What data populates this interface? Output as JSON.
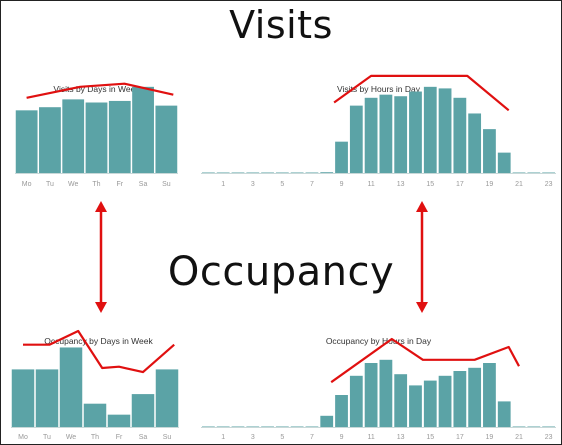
{
  "headings": {
    "visits": "Visits",
    "occupancy": "Occupancy"
  },
  "colors": {
    "bar": "#5ba3a6",
    "trend": "#e01010",
    "arrow": "#e01010",
    "axis": "#c8d8d8"
  },
  "chart_data": [
    {
      "type": "bar",
      "title": "Visits by Days in Week",
      "categories": [
        "Mo",
        "Tu",
        "We",
        "Th",
        "Fr",
        "Sa",
        "Su"
      ],
      "values": [
        40,
        42,
        47,
        45,
        46,
        55,
        43
      ],
      "ylim": [
        0,
        60
      ],
      "trend": [
        [
          0.0,
          48
        ],
        [
          2.3,
          55
        ],
        [
          4.2,
          57
        ],
        [
          6.3,
          50
        ]
      ]
    },
    {
      "type": "bar",
      "title": "Visits by Hours in Day",
      "categories": [
        "0",
        "1",
        "2",
        "3",
        "4",
        "5",
        "6",
        "7",
        "8",
        "9",
        "10",
        "11",
        "12",
        "13",
        "14",
        "15",
        "16",
        "17",
        "18",
        "19",
        "20",
        "21",
        "22",
        "23"
      ],
      "tick_labels": [
        "1",
        "3",
        "5",
        "7",
        "9",
        "11",
        "13",
        "15",
        "17",
        "19",
        "21",
        "23"
      ],
      "values": [
        0.3,
        0.3,
        0.3,
        0.3,
        0.3,
        0.3,
        0.3,
        0.3,
        0.5,
        20,
        43,
        48,
        50,
        49,
        52,
        55,
        54,
        48,
        38,
        28,
        13,
        0.3,
        0.3,
        0.3
      ],
      "ylim": [
        0,
        60
      ],
      "trend": [
        [
          8.5,
          45
        ],
        [
          11,
          62
        ],
        [
          17.5,
          62
        ],
        [
          20.3,
          40
        ]
      ]
    },
    {
      "type": "bar",
      "title": "Occupancy by Days in Week",
      "categories": [
        "Mo",
        "Tu",
        "We",
        "Th",
        "Fr",
        "Sa",
        "Su"
      ],
      "values": [
        42,
        42,
        58,
        17,
        9,
        24,
        42
      ],
      "ylim": [
        0,
        70
      ],
      "trend": [
        [
          0.0,
          60
        ],
        [
          1.1,
          60
        ],
        [
          2.3,
          70
        ],
        [
          3.3,
          43
        ],
        [
          4.0,
          44
        ],
        [
          5.0,
          40
        ],
        [
          6.3,
          60
        ]
      ]
    },
    {
      "type": "bar",
      "title": "Occupancy by Hours in Day",
      "categories": [
        "0",
        "1",
        "2",
        "3",
        "4",
        "5",
        "6",
        "7",
        "8",
        "9",
        "10",
        "11",
        "12",
        "13",
        "14",
        "15",
        "16",
        "17",
        "18",
        "19",
        "20",
        "21",
        "22",
        "23"
      ],
      "tick_labels": [
        "1",
        "3",
        "5",
        "7",
        "9",
        "11",
        "13",
        "15",
        "17",
        "19",
        "21",
        "23"
      ],
      "values": [
        0.3,
        0.3,
        0.3,
        0.3,
        0.3,
        0.3,
        0.3,
        0.3,
        7,
        20,
        32,
        40,
        42,
        33,
        26,
        29,
        32,
        35,
        37,
        40,
        16,
        0.3,
        0.3,
        0.3
      ],
      "ylim": [
        0,
        60
      ],
      "trend": [
        [
          8.3,
          28
        ],
        [
          12.4,
          55
        ],
        [
          14.5,
          42
        ],
        [
          18,
          42
        ],
        [
          20.3,
          50
        ],
        [
          21,
          38
        ]
      ]
    }
  ]
}
